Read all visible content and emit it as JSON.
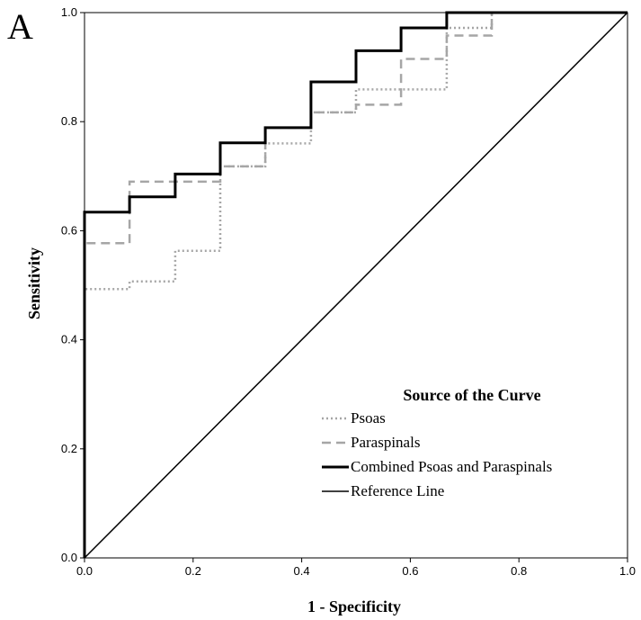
{
  "panel_label": "A",
  "chart_data": {
    "type": "line",
    "title": "",
    "xlabel": "1 - Specificity",
    "ylabel": "Sensitivity",
    "xlim": [
      0,
      1
    ],
    "ylim": [
      0,
      1
    ],
    "x_ticks": [
      "0.0",
      "0.2",
      "0.4",
      "0.6",
      "0.8",
      "1.0"
    ],
    "y_ticks": [
      "0.0",
      "0.2",
      "0.4",
      "0.6",
      "0.8",
      "1.0"
    ],
    "grid": false,
    "legend_title": "Source of the Curve",
    "legend_placement": "lower-right",
    "series": [
      {
        "name": "Psoas",
        "style": "dotted",
        "color": "#a6a6a6",
        "points": [
          [
            0,
            0
          ],
          [
            0,
            0.493
          ],
          [
            0.083,
            0.493
          ],
          [
            0.083,
            0.507
          ],
          [
            0.167,
            0.507
          ],
          [
            0.167,
            0.563
          ],
          [
            0.25,
            0.563
          ],
          [
            0.25,
            0.718
          ],
          [
            0.333,
            0.718
          ],
          [
            0.333,
            0.76
          ],
          [
            0.417,
            0.76
          ],
          [
            0.417,
            0.817
          ],
          [
            0.5,
            0.817
          ],
          [
            0.5,
            0.859
          ],
          [
            0.583,
            0.859
          ],
          [
            0.583,
            0.859
          ],
          [
            0.667,
            0.859
          ],
          [
            0.667,
            0.972
          ],
          [
            0.75,
            0.972
          ],
          [
            0.75,
            1.0
          ],
          [
            1.0,
            1.0
          ]
        ]
      },
      {
        "name": "Paraspinals",
        "style": "dashed",
        "color": "#a6a6a6",
        "points": [
          [
            0,
            0
          ],
          [
            0,
            0.577
          ],
          [
            0.083,
            0.577
          ],
          [
            0.083,
            0.69
          ],
          [
            0.167,
            0.69
          ],
          [
            0.25,
            0.69
          ],
          [
            0.25,
            0.718
          ],
          [
            0.333,
            0.718
          ],
          [
            0.333,
            0.789
          ],
          [
            0.417,
            0.789
          ],
          [
            0.417,
            0.817
          ],
          [
            0.5,
            0.817
          ],
          [
            0.5,
            0.831
          ],
          [
            0.583,
            0.831
          ],
          [
            0.583,
            0.915
          ],
          [
            0.667,
            0.915
          ],
          [
            0.667,
            0.958
          ],
          [
            0.75,
            0.958
          ],
          [
            0.75,
            1.0
          ],
          [
            1.0,
            1.0
          ]
        ]
      },
      {
        "name": "Combined Psoas and Paraspinals",
        "style": "solid-bold",
        "color": "#000000",
        "points": [
          [
            0,
            0
          ],
          [
            0,
            0.634
          ],
          [
            0.083,
            0.634
          ],
          [
            0.083,
            0.662
          ],
          [
            0.167,
            0.662
          ],
          [
            0.167,
            0.704
          ],
          [
            0.25,
            0.704
          ],
          [
            0.25,
            0.761
          ],
          [
            0.333,
            0.761
          ],
          [
            0.333,
            0.789
          ],
          [
            0.417,
            0.789
          ],
          [
            0.417,
            0.873
          ],
          [
            0.5,
            0.873
          ],
          [
            0.5,
            0.93
          ],
          [
            0.583,
            0.93
          ],
          [
            0.583,
            0.972
          ],
          [
            0.667,
            0.972
          ],
          [
            0.667,
            1.0
          ],
          [
            1.0,
            1.0
          ]
        ]
      },
      {
        "name": "Reference Line",
        "style": "solid",
        "color": "#000000",
        "points": [
          [
            0,
            0
          ],
          [
            1,
            1
          ]
        ]
      }
    ]
  }
}
